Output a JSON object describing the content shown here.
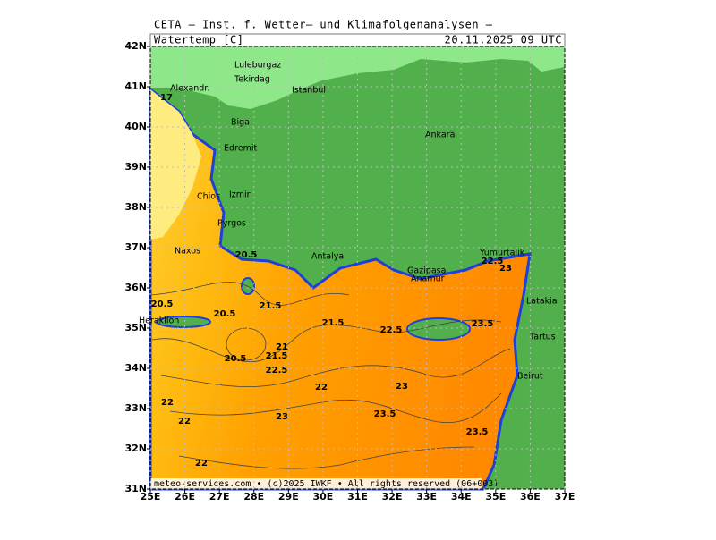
{
  "header": {
    "title": "CETA – Inst. f. Wetter– und Klimafolgenanalysen –",
    "variable": "Watertemp [C]",
    "valid_time": "20.11.2025 09 UTC"
  },
  "map": {
    "xticks": [
      {
        "value": 25,
        "label": "25E"
      },
      {
        "value": 26,
        "label": "26E"
      },
      {
        "value": 27,
        "label": "27E"
      },
      {
        "value": 28,
        "label": "28E"
      },
      {
        "value": 29,
        "label": "29E"
      },
      {
        "value": 30,
        "label": "30E"
      },
      {
        "value": 31,
        "label": "31E"
      },
      {
        "value": 32,
        "label": "32E"
      },
      {
        "value": 33,
        "label": "33E"
      },
      {
        "value": 34,
        "label": "34E"
      },
      {
        "value": 35,
        "label": "35E"
      },
      {
        "value": 36,
        "label": "36E"
      },
      {
        "value": 37,
        "label": "37E"
      }
    ],
    "yticks": [
      {
        "value": 31,
        "label": "31N"
      },
      {
        "value": 32,
        "label": "32N"
      },
      {
        "value": 33,
        "label": "33N"
      },
      {
        "value": 34,
        "label": "34N"
      },
      {
        "value": 35,
        "label": "35N"
      },
      {
        "value": 36,
        "label": "36N"
      },
      {
        "value": 37,
        "label": "37N"
      },
      {
        "value": 38,
        "label": "38N"
      },
      {
        "value": 39,
        "label": "39N"
      },
      {
        "value": 40,
        "label": "40N"
      },
      {
        "value": 41,
        "label": "41N"
      },
      {
        "value": 42,
        "label": "42N"
      }
    ],
    "xlim": [
      25,
      37
    ],
    "ylim": [
      31,
      42
    ],
    "grid": true
  },
  "cities": [
    "Luleburgaz",
    "Tekirdag",
    "Istanbul",
    "Alexandr.",
    "Biga",
    "Edremit",
    "Ankara",
    "Chios",
    "Izmir",
    "Pyrgos",
    "Naxos",
    "Antalya",
    "Yumurtalik",
    "Gazipasa",
    "Anamur",
    "Latakia",
    "Tartus",
    "Beirut",
    "Heraklion"
  ],
  "contour_labels": [
    17,
    20.5,
    20.5,
    21.5,
    21.5,
    22.5,
    23.5,
    20.5,
    21,
    21.5,
    22.5,
    22,
    22,
    22,
    23,
    23,
    23.5,
    23.5,
    22,
    22.5,
    23,
    20.5
  ],
  "footer": "meteo-services.com • (c)2025 IWKF • All rights reserved (06+003)"
}
